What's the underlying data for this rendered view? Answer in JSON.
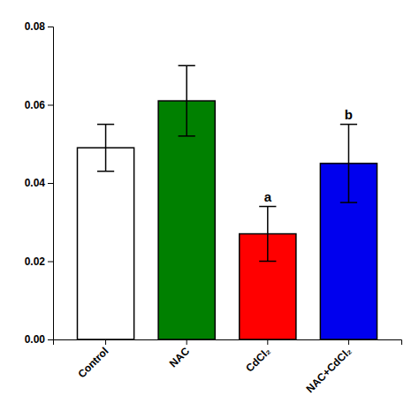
{
  "chart_data": {
    "type": "bar",
    "categories": [
      "Control",
      "NAC",
      "CdCl₂",
      "NAC+CdCl₂"
    ],
    "values": [
      0.049,
      0.061,
      0.027,
      0.045
    ],
    "errors": [
      0.006,
      0.009,
      0.007,
      0.01
    ],
    "colors": [
      "white",
      "#008000",
      "#ff0000",
      "#0000ee"
    ],
    "annotations": [
      {
        "text": "a",
        "category": "CdCl₂"
      },
      {
        "text": "b",
        "category": "NAC+CdCl₂"
      }
    ],
    "ylim": [
      0,
      0.08
    ],
    "yticks": [
      {
        "value": 0,
        "label": "0.00"
      },
      0.02,
      0.04,
      0.06,
      0.08
    ],
    "grid": false
  }
}
